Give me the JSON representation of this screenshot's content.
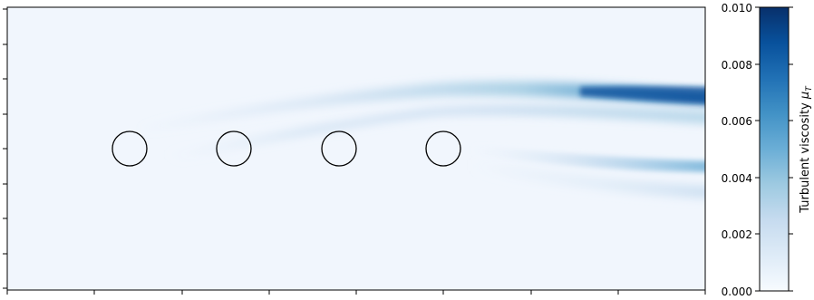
{
  "chart_data": {
    "type": "heatmap",
    "title": "",
    "xlabel": "",
    "ylabel": "",
    "colormap": "Blues",
    "colorbar": {
      "label": "Turbulent viscosity",
      "label_symbol": "μ",
      "label_subscript": "T",
      "range": [
        0.0,
        0.01
      ],
      "ticks": [
        "0.000",
        "0.002",
        "0.004",
        "0.006",
        "0.008",
        "0.010"
      ]
    },
    "axes": {
      "x_tick_labels_shown": false,
      "y_tick_labels_shown": false,
      "x_tick_count": 8,
      "y_tick_count": 8
    },
    "obstacles": {
      "shape": "circle",
      "count": 4,
      "arrangement": "evenly spaced along the horizontal centerline",
      "edge_color": "#000000",
      "fill": "none"
    },
    "field_description_values": {
      "background_level": 0.0002,
      "upper_wake_peak_near_right_edge": 0.0092,
      "lower_wake_peak_near_right_edge": 0.0055
    }
  }
}
